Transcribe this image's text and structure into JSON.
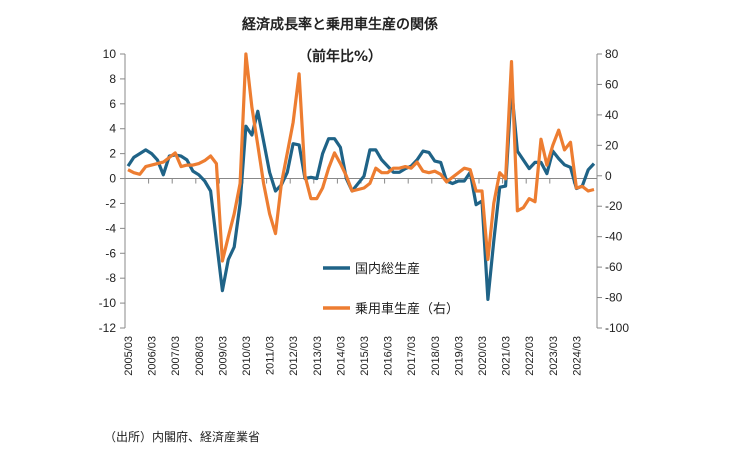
{
  "chart_data": {
    "type": "line",
    "title": "経済成長率と乗用車生産の関係",
    "subtitle": "（前年比%）",
    "source": "（出所）内閣府、経済産業省",
    "x_tick_labels": [
      "2005/03",
      "2006/03",
      "2007/03",
      "2008/03",
      "2009/03",
      "2010/03",
      "2011/03",
      "2012/03",
      "2013/03",
      "2014/03",
      "2015/03",
      "2016/03",
      "2017/03",
      "2018/03",
      "2019/03",
      "2020/03",
      "2021/03",
      "2022/03",
      "2023/03",
      "2024/03"
    ],
    "x_start": "2005Q1",
    "x_end": "2024Q4",
    "frequency": "quarterly",
    "y_left": {
      "range": [
        -12,
        10
      ],
      "ticks": [
        10,
        8,
        6,
        4,
        2,
        0,
        -2,
        -4,
        -6,
        -8,
        -10,
        -12
      ]
    },
    "y_right": {
      "range": [
        -100,
        80
      ],
      "ticks": [
        80,
        60,
        40,
        20,
        0,
        -20,
        -40,
        -60,
        -80,
        -100
      ]
    },
    "legend_position": "center",
    "series": [
      {
        "name": "国内総生産",
        "axis": "left",
        "color": "#1f6387",
        "values": [
          1.0,
          1.7,
          2.0,
          2.3,
          2.0,
          1.5,
          0.3,
          1.8,
          1.9,
          1.8,
          1.5,
          0.6,
          0.3,
          -0.2,
          -1.0,
          -5.0,
          -9.0,
          -6.5,
          -5.5,
          -2.0,
          4.2,
          3.5,
          5.4,
          3.0,
          0.5,
          -1.0,
          -0.5,
          0.5,
          2.8,
          2.7,
          0.0,
          0.1,
          0.0,
          2.0,
          3.2,
          3.2,
          2.5,
          0.0,
          -1.0,
          -0.4,
          0.2,
          2.3,
          2.3,
          1.5,
          1.0,
          0.5,
          0.5,
          0.8,
          1.0,
          1.5,
          2.2,
          2.1,
          1.4,
          1.3,
          -0.2,
          -0.4,
          -0.2,
          -0.2,
          0.5,
          -2.1,
          -1.8,
          -9.7,
          -5.0,
          -0.7,
          -0.6,
          7.3,
          2.2,
          1.5,
          0.8,
          1.3,
          1.3,
          0.4,
          2.2,
          1.6,
          1.1,
          0.9,
          -0.8,
          -0.6,
          0.7,
          1.2
        ]
      },
      {
        "name": "乗用車生産（右）",
        "axis": "right",
        "color": "#ed7d31",
        "values": [
          4,
          2,
          1,
          6,
          7,
          8,
          9,
          12,
          15,
          6,
          7,
          7,
          8,
          10,
          13,
          8,
          -56,
          -40,
          -25,
          -5,
          80,
          45,
          20,
          -5,
          -25,
          -38,
          -5,
          15,
          35,
          67,
          0,
          -15,
          -15,
          -8,
          5,
          15,
          8,
          0,
          -10,
          -9,
          -8,
          -5,
          5,
          2,
          2,
          5,
          5,
          6,
          5,
          9,
          3,
          2,
          3,
          1,
          -4,
          -1,
          2,
          5,
          4,
          -10,
          -10,
          -55,
          -18,
          2,
          -2,
          75,
          -23,
          -21,
          -15,
          -17,
          24,
          7,
          20,
          30,
          17,
          22,
          -8,
          -7,
          -10,
          -9
        ]
      }
    ]
  }
}
